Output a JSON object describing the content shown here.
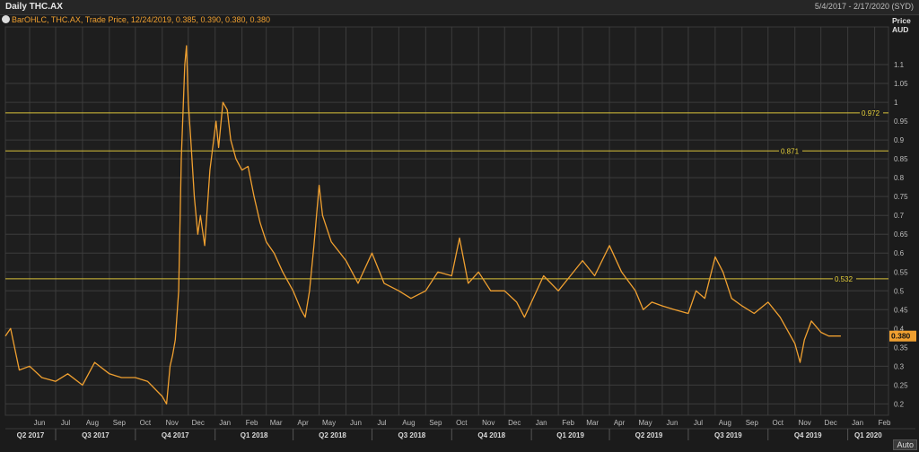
{
  "window": {
    "title": "Daily THC.AX",
    "date_range": "5/4/2017 - 2/17/2020 (SYD)"
  },
  "legend": {
    "text": "BarOHLC, THC.AX, Trade Price, 12/24/2019, 0.385, 0.390, 0.380, 0.380"
  },
  "controls": {
    "auto_label": "Auto"
  },
  "colors": {
    "price": "#f0a030",
    "hline": "#d9c23a",
    "grid": "#3c3c3c",
    "background": "#1b1b1b"
  },
  "chart_data": {
    "type": "line",
    "ylabel": [
      "Price",
      "AUD"
    ],
    "ylim": [
      0.17,
      1.2
    ],
    "yticks": [
      0.2,
      0.25,
      0.3,
      0.35,
      0.4,
      0.45,
      0.5,
      0.55,
      0.6,
      0.65,
      0.7,
      0.75,
      0.8,
      0.85,
      0.9,
      0.95,
      1,
      1.05,
      1.1
    ],
    "ytick_labels": [
      "0.2",
      "0.25",
      "0.3",
      "0.35",
      "0.4",
      "0.45",
      "0.5",
      "0.55",
      "0.6",
      "0.65",
      "0.7",
      "0.75",
      "0.8",
      "0.85",
      "0.9",
      "0.95",
      "1",
      "1.05",
      "1.1"
    ],
    "months": [
      "Jun",
      "Jul",
      "Aug",
      "Sep",
      "Oct",
      "Nov",
      "Dec",
      "Jan",
      "Feb",
      "Mar",
      "Apr",
      "May",
      "Jun",
      "Jul",
      "Aug",
      "Sep",
      "Oct",
      "Nov",
      "Dec",
      "Jan",
      "Feb",
      "Mar",
      "Apr",
      "May",
      "Jun",
      "Jul",
      "Aug",
      "Sep",
      "Oct",
      "Nov",
      "Dec",
      "Jan",
      "Feb"
    ],
    "quarters": [
      "Q2 2017",
      "Q3 2017",
      "Q4 2017",
      "Q1 2018",
      "Q2 2018",
      "Q3 2018",
      "Q4 2018",
      "Q1 2019",
      "Q2 2019",
      "Q3 2019",
      "Q4 2019",
      "Q1 2020"
    ],
    "hlines": [
      {
        "value": 0.972,
        "label": "0.972"
      },
      {
        "value": 0.871,
        "label": "0.871"
      },
      {
        "value": 0.532,
        "label": "0.532"
      }
    ],
    "last_price": {
      "value": 0.38,
      "label": "0.380"
    },
    "series": [
      {
        "x": [
          "2017-05-04",
          "2017-05-10",
          "2017-05-20",
          "2017-06-01",
          "2017-06-15",
          "2017-07-01",
          "2017-07-15",
          "2017-08-01",
          "2017-08-15",
          "2017-09-01",
          "2017-09-15",
          "2017-10-01",
          "2017-10-15",
          "2017-11-01",
          "2017-11-06",
          "2017-11-10",
          "2017-11-13",
          "2017-11-16",
          "2017-11-20",
          "2017-11-23",
          "2017-11-27",
          "2017-11-29",
          "2017-12-01",
          "2017-12-04",
          "2017-12-08",
          "2017-12-12",
          "2017-12-15",
          "2017-12-20",
          "2017-12-26",
          "2018-01-02",
          "2018-01-05",
          "2018-01-10",
          "2018-01-15",
          "2018-01-19",
          "2018-01-25",
          "2018-02-01",
          "2018-02-08",
          "2018-02-15",
          "2018-02-22",
          "2018-03-01",
          "2018-03-10",
          "2018-03-20",
          "2018-04-01",
          "2018-04-10",
          "2018-04-15",
          "2018-04-20",
          "2018-04-25",
          "2018-05-01",
          "2018-05-05",
          "2018-05-15",
          "2018-06-01",
          "2018-06-15",
          "2018-07-01",
          "2018-07-15",
          "2018-08-01",
          "2018-08-15",
          "2018-09-01",
          "2018-09-15",
          "2018-10-01",
          "2018-10-10",
          "2018-10-20",
          "2018-11-01",
          "2018-11-15",
          "2018-12-01",
          "2018-12-15",
          "2018-12-24",
          "2019-01-01",
          "2019-01-15",
          "2019-02-01",
          "2019-02-15",
          "2019-03-01",
          "2019-03-15",
          "2019-04-01",
          "2019-04-15",
          "2019-05-01",
          "2019-05-10",
          "2019-05-20",
          "2019-06-01",
          "2019-06-15",
          "2019-07-01",
          "2019-07-10",
          "2019-07-20",
          "2019-08-01",
          "2019-08-10",
          "2019-08-20",
          "2019-09-01",
          "2019-09-15",
          "2019-10-01",
          "2019-10-15",
          "2019-11-01",
          "2019-11-07",
          "2019-11-12",
          "2019-11-20",
          "2019-12-01",
          "2019-12-10",
          "2019-12-24"
        ],
        "values": [
          0.38,
          0.4,
          0.29,
          0.3,
          0.27,
          0.26,
          0.28,
          0.25,
          0.31,
          0.28,
          0.27,
          0.27,
          0.26,
          0.22,
          0.2,
          0.3,
          0.33,
          0.37,
          0.5,
          0.85,
          1.1,
          1.15,
          1.0,
          0.9,
          0.75,
          0.65,
          0.7,
          0.62,
          0.82,
          0.95,
          0.88,
          1.0,
          0.98,
          0.9,
          0.85,
          0.82,
          0.83,
          0.75,
          0.68,
          0.63,
          0.6,
          0.55,
          0.5,
          0.45,
          0.43,
          0.5,
          0.62,
          0.78,
          0.7,
          0.63,
          0.58,
          0.52,
          0.6,
          0.52,
          0.5,
          0.48,
          0.5,
          0.55,
          0.54,
          0.64,
          0.52,
          0.55,
          0.5,
          0.5,
          0.47,
          0.43,
          0.47,
          0.54,
          0.5,
          0.54,
          0.58,
          0.54,
          0.62,
          0.55,
          0.5,
          0.45,
          0.47,
          0.46,
          0.45,
          0.44,
          0.5,
          0.48,
          0.59,
          0.55,
          0.48,
          0.46,
          0.44,
          0.47,
          0.43,
          0.36,
          0.31,
          0.37,
          0.42,
          0.39,
          0.38,
          0.38
        ]
      }
    ]
  }
}
